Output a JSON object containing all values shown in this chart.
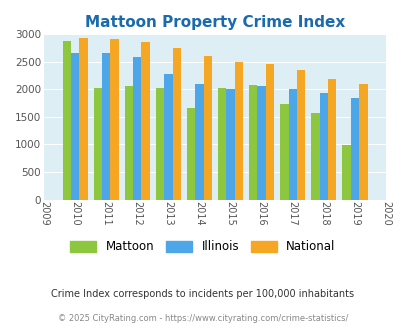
{
  "title": "Mattoon Property Crime Index",
  "plot_years": [
    2010,
    2011,
    2012,
    2013,
    2014,
    2015,
    2016,
    2017,
    2018,
    2019
  ],
  "mattoon": [
    2880,
    2020,
    2050,
    2030,
    1660,
    2020,
    2070,
    1740,
    1570,
    990
  ],
  "illinois": [
    2660,
    2660,
    2580,
    2270,
    2090,
    2000,
    2060,
    2010,
    1940,
    1850
  ],
  "national": [
    2920,
    2900,
    2850,
    2740,
    2610,
    2500,
    2460,
    2350,
    2190,
    2090
  ],
  "mattoon_color": "#8dc63f",
  "illinois_color": "#4da6e8",
  "national_color": "#f5a623",
  "bg_color": "#deeef5",
  "ylim": [
    0,
    3000
  ],
  "yticks": [
    0,
    500,
    1000,
    1500,
    2000,
    2500,
    3000
  ],
  "all_xtick_labels": [
    "2009",
    "2010",
    "2011",
    "2012",
    "2013",
    "2014",
    "2015",
    "2016",
    "2017",
    "2018",
    "2019",
    "2020"
  ],
  "legend_labels": [
    "Mattoon",
    "Illinois",
    "National"
  ],
  "footnote1": "Crime Index corresponds to incidents per 100,000 inhabitants",
  "footnote2": "© 2025 CityRating.com - https://www.cityrating.com/crime-statistics/",
  "title_color": "#1a6aad",
  "footnote1_color": "#333333",
  "footnote2_color": "#888888",
  "bar_width": 0.27
}
